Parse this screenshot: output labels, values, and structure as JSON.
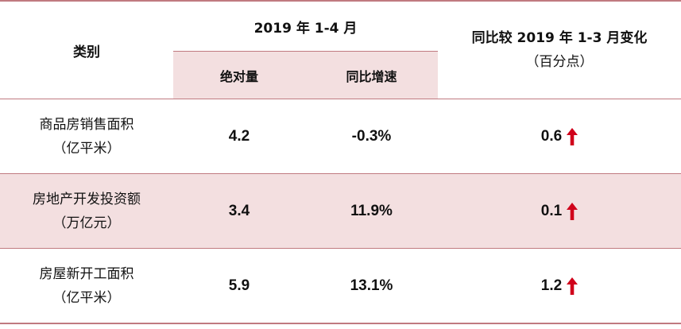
{
  "header": {
    "category": "类别",
    "period": "2019 年 1-4 月",
    "absolute": "绝对量",
    "yoy_growth": "同比增速",
    "change_title": "同比较 2019 年 1-3 月变化",
    "change_unit": "（百分点）"
  },
  "rows": [
    {
      "name": "商品房销售面积",
      "unit": "（亿平米）",
      "absolute": "4.2",
      "growth": "-0.3%",
      "change": "0.6",
      "trend": "up"
    },
    {
      "name": "房地产开发投资额",
      "unit": "（万亿元）",
      "absolute": "3.4",
      "growth": "11.9%",
      "change": "0.1",
      "trend": "up"
    },
    {
      "name": "房屋新开工面积",
      "unit": "（亿平米）",
      "absolute": "5.9",
      "growth": "13.1%",
      "change": "1.2",
      "trend": "up"
    }
  ],
  "colors": {
    "band": "#f3dfe0",
    "rule": "#c07a80",
    "arrow": "#d0021b"
  },
  "icons": {
    "trend_up": "up-arrow-icon"
  }
}
